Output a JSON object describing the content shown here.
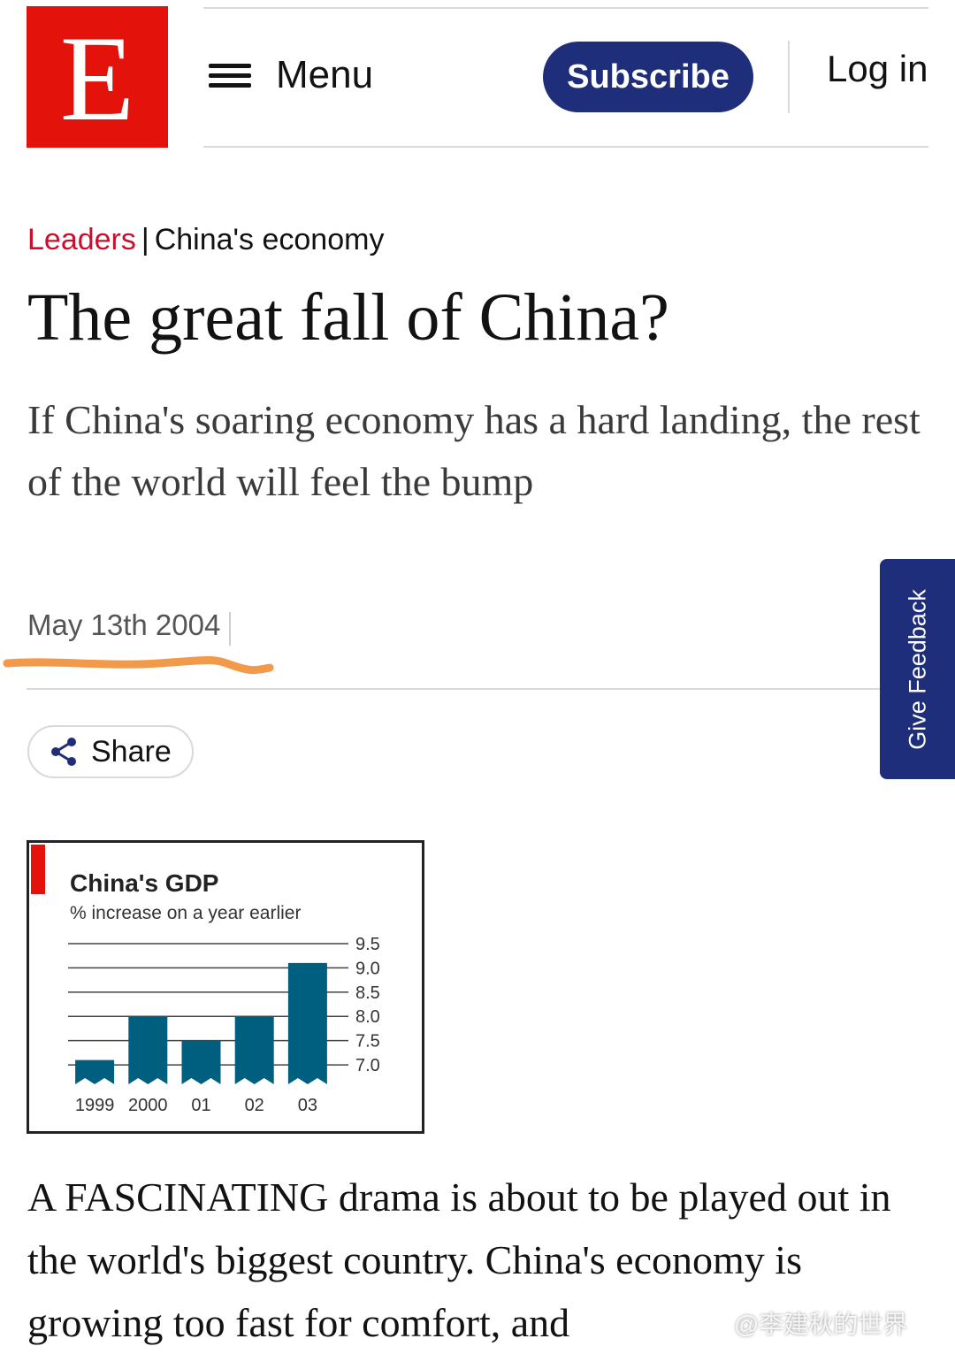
{
  "header": {
    "logo_letter": "E",
    "menu_label": "Menu",
    "subscribe_label": "Subscribe",
    "login_label": "Log in",
    "brand_color": "#e3120b",
    "accent_color": "#1f2e7a"
  },
  "article": {
    "section": "Leaders",
    "separator": "|",
    "topic": "China's economy",
    "headline": "The great fall of China?",
    "standfirst": "If China's soaring economy has a hard landing, the rest of the world will feel the bump",
    "date": "May 13th 2004",
    "share_label": "Share",
    "body": "A FASCINATING drama is about to be played out in the world's biggest country. China's economy is growing too fast for comfort, and"
  },
  "feedback_tab": {
    "label": "Give Feedback"
  },
  "watermark": "@李建秋的世界",
  "chart_data": {
    "type": "bar",
    "title": "China's GDP",
    "subtitle": "% increase on a year earlier",
    "categories": [
      "1999",
      "2000",
      "01",
      "02",
      "03"
    ],
    "values": [
      7.1,
      8.0,
      7.5,
      8.0,
      9.1
    ],
    "ylim": [
      6.6,
      9.5
    ],
    "yticks": [
      9.5,
      9.0,
      8.5,
      8.0,
      7.5,
      7.0
    ],
    "ytick_labels": [
      "9.5",
      "9.0",
      "8.5",
      "8.0",
      "7.5",
      "7.0"
    ],
    "y_axis_side": "right",
    "grid": true,
    "bar_color": "#005f7f"
  }
}
